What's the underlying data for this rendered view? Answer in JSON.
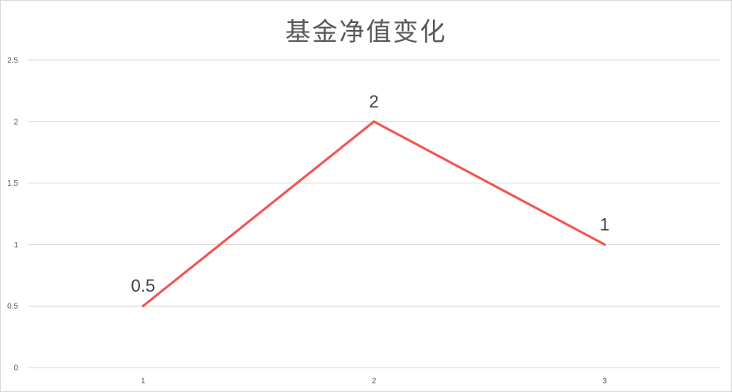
{
  "chart_data": {
    "type": "line",
    "title": "基金净值变化",
    "xlabel": "",
    "ylabel": "",
    "categories": [
      "1",
      "2",
      "3"
    ],
    "series": [
      {
        "values": [
          0.5,
          2,
          1
        ],
        "color": "#f25552"
      }
    ],
    "ylim": [
      0,
      2.5
    ],
    "yticks": [
      "0",
      "0.5",
      "1",
      "1.5",
      "2",
      "2.5"
    ],
    "data_labels": [
      "0.5",
      "2",
      "1"
    ],
    "grid": true,
    "legend": "none"
  }
}
